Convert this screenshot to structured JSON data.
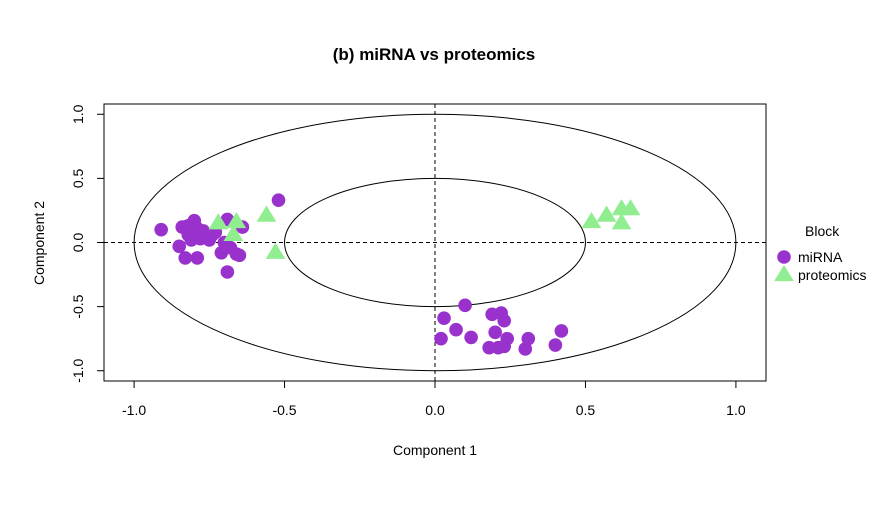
{
  "chart_data": {
    "type": "scatter",
    "title": "(b) miRNA vs proteomics",
    "xlabel": "Component  1",
    "ylabel": "Component  2",
    "xlim": [
      -1.1,
      1.1
    ],
    "ylim": [
      -1.08,
      1.08
    ],
    "x_ticks": [
      -1.0,
      -0.5,
      0.0,
      0.5,
      1.0
    ],
    "x_tick_labels": [
      "-1.0",
      "-0.5",
      "0.0",
      "0.5",
      "1.0"
    ],
    "y_ticks": [
      -1.0,
      -0.5,
      0.0,
      0.5,
      1.0
    ],
    "y_tick_labels": [
      "-1.0",
      "-0.5",
      "0.0",
      "0.5",
      "1.0"
    ],
    "grid": false,
    "reference_lines": {
      "x": 0,
      "y": 0,
      "style": "dashed"
    },
    "circles": [
      {
        "radius": 1.0
      },
      {
        "radius": 0.5
      }
    ],
    "legend": {
      "title": "Block",
      "position": "right"
    },
    "series": [
      {
        "name": "miRNA",
        "marker": "circle",
        "color": "#9932CC",
        "points": [
          [
            -0.91,
            0.1
          ],
          [
            -0.84,
            0.12
          ],
          [
            -0.82,
            0.06
          ],
          [
            -0.85,
            -0.03
          ],
          [
            -0.8,
            0.17
          ],
          [
            -0.82,
            0.13
          ],
          [
            -0.79,
            0.11
          ],
          [
            -0.78,
            0.03
          ],
          [
            -0.77,
            0.09
          ],
          [
            -0.76,
            0.05
          ],
          [
            -0.75,
            0.02
          ],
          [
            -0.74,
            0.06
          ],
          [
            -0.73,
            0.08
          ],
          [
            -0.81,
            0.02
          ],
          [
            -0.83,
            -0.12
          ],
          [
            -0.79,
            -0.12
          ],
          [
            -0.71,
            -0.08
          ],
          [
            -0.7,
            0.0
          ],
          [
            -0.69,
            0.18
          ],
          [
            -0.68,
            -0.04
          ],
          [
            -0.66,
            -0.09
          ],
          [
            -0.65,
            -0.1
          ],
          [
            -0.64,
            0.12
          ],
          [
            -0.69,
            -0.23
          ],
          [
            -0.52,
            0.33
          ],
          [
            0.1,
            -0.49
          ],
          [
            0.03,
            -0.59
          ],
          [
            0.07,
            -0.68
          ],
          [
            0.02,
            -0.75
          ],
          [
            0.12,
            -0.74
          ],
          [
            0.19,
            -0.56
          ],
          [
            0.22,
            -0.55
          ],
          [
            0.23,
            -0.61
          ],
          [
            0.2,
            -0.7
          ],
          [
            0.24,
            -0.75
          ],
          [
            0.18,
            -0.82
          ],
          [
            0.21,
            -0.82
          ],
          [
            0.23,
            -0.81
          ],
          [
            0.31,
            -0.75
          ],
          [
            0.3,
            -0.83
          ],
          [
            0.4,
            -0.8
          ],
          [
            0.42,
            -0.69
          ]
        ]
      },
      {
        "name": "proteomics",
        "marker": "triangle",
        "color": "#90EE90",
        "points": [
          [
            -0.72,
            0.15
          ],
          [
            -0.66,
            0.16
          ],
          [
            -0.67,
            0.06
          ],
          [
            -0.56,
            0.21
          ],
          [
            -0.53,
            -0.08
          ],
          [
            0.52,
            0.16
          ],
          [
            0.57,
            0.21
          ],
          [
            0.62,
            0.26
          ],
          [
            0.62,
            0.15
          ],
          [
            0.65,
            0.26
          ]
        ]
      }
    ]
  }
}
